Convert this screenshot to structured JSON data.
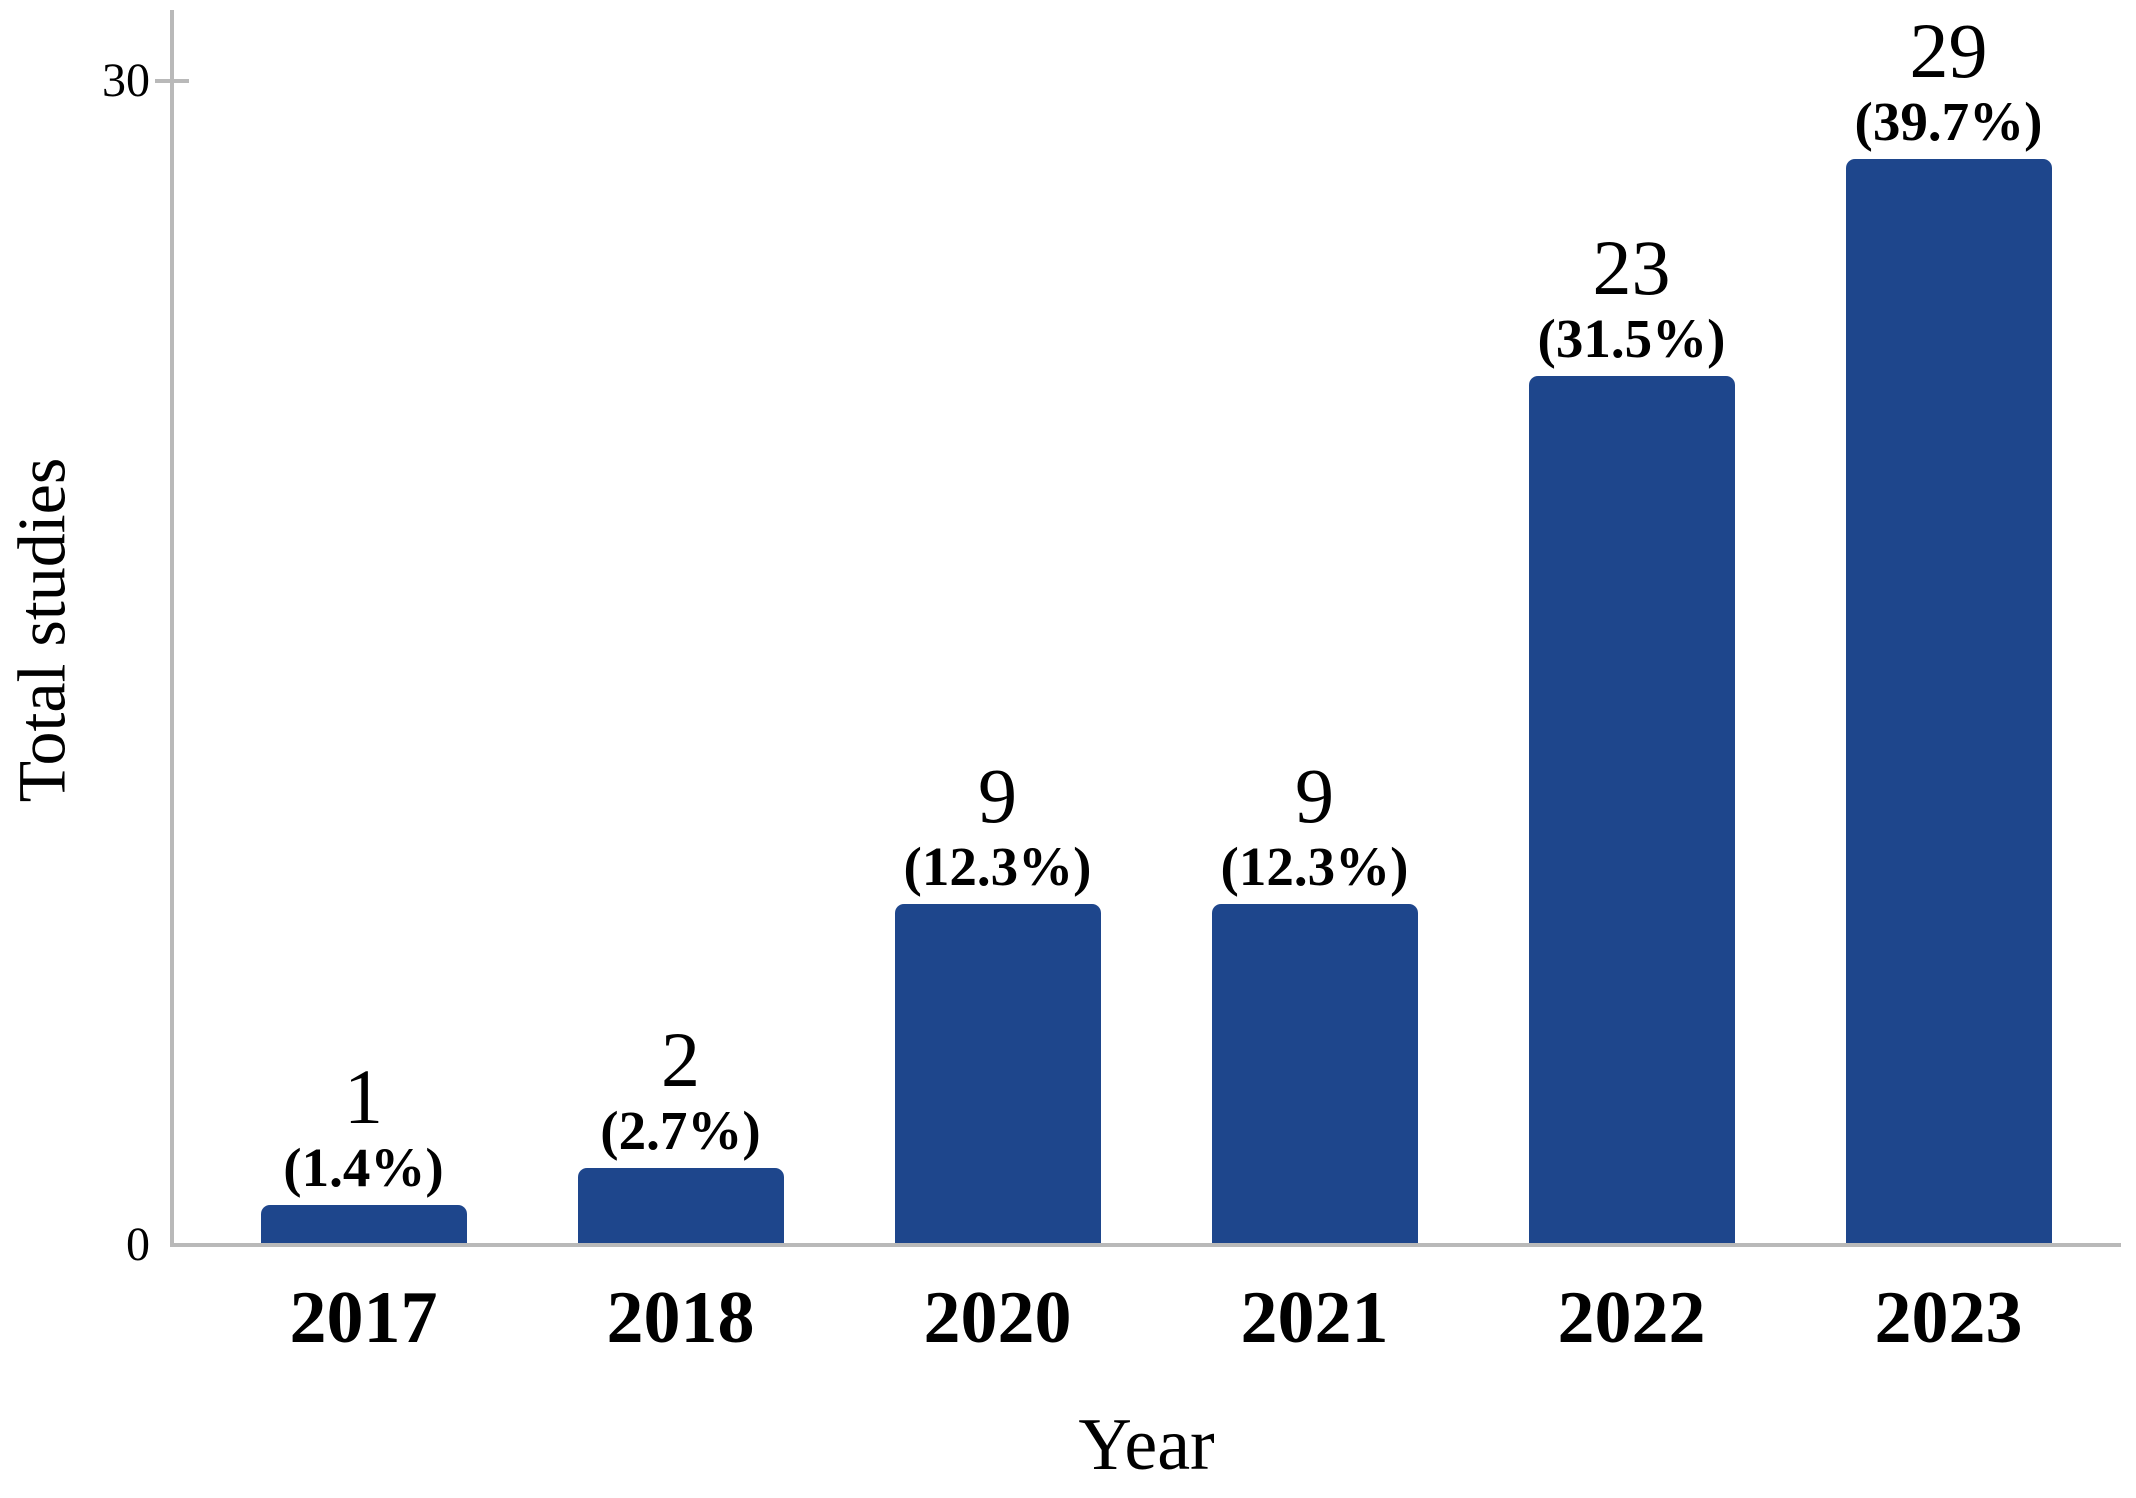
{
  "chart_data": {
    "type": "bar",
    "title": "",
    "categories": [
      "2017",
      "2018",
      "2020",
      "2021",
      "2022",
      "2023"
    ],
    "values": [
      1,
      2,
      9,
      9,
      23,
      29
    ],
    "bar_labels": [
      {
        "count": "1",
        "percent": "(1.4%)"
      },
      {
        "count": "2",
        "percent": "(2.7%)"
      },
      {
        "count": "9",
        "percent": "(12.3%)"
      },
      {
        "count": "9",
        "percent": "(12.3%)"
      },
      {
        "count": "23",
        "percent": "(31.5%)"
      },
      {
        "count": "29",
        "percent": "(39.7%)"
      }
    ],
    "xlabel": "Year",
    "ylabel": "Total studies",
    "ylim": [
      0,
      30
    ],
    "y_ticks": [
      {
        "label": "30",
        "value": 30
      },
      {
        "label": "0",
        "value": 0
      }
    ],
    "grid": false,
    "legend": "none",
    "colors": {
      "bar": "#1e468c",
      "axis": "#b9b9b9",
      "text": "#000000",
      "background": "#ffffff"
    }
  }
}
